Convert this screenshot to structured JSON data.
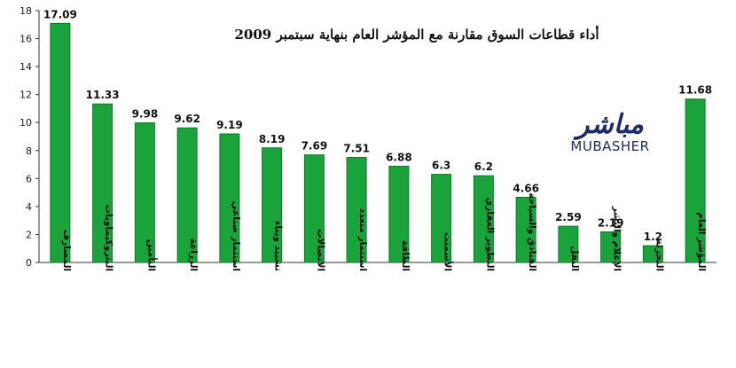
{
  "chart_data": {
    "type": "bar",
    "title": "أداء قطاعات السوق مقارنة مع المؤشر العام بنهاية سبتمبر 2009",
    "categories": [
      "المصارف",
      "البتروكيماويات",
      "التأمين",
      "الزراعة",
      "استثمار صناعي",
      "تشييد وبناء",
      "الاتصالات",
      "استثمار متعدد",
      "الطاقة",
      "الأسمنت",
      "التطوير العقاري",
      "الفنادق والسياحة",
      "النقل",
      "الإعلام والنشر",
      "التجزئة",
      "المؤشر العام"
    ],
    "values": [
      17.09,
      11.33,
      9.98,
      9.62,
      9.19,
      8.19,
      7.69,
      7.51,
      6.88,
      6.3,
      6.2,
      4.66,
      2.59,
      2.19,
      1.2,
      11.68
    ],
    "value_labels": [
      "17.09",
      "11.33",
      "9.98",
      "9.62",
      "9.19",
      "8.19",
      "7.69",
      "7.51",
      "6.88",
      "6.3",
      "6.2",
      "4.66",
      "2.59",
      "2.19",
      "1.2",
      "11.68"
    ],
    "y_ticks": [
      "0",
      "2",
      "4",
      "6",
      "8",
      "10",
      "12",
      "14",
      "16",
      "18"
    ],
    "ylim": [
      0,
      18
    ],
    "grid": false,
    "legend": "none",
    "bar_color": "#1aa33a",
    "bar_edge_color": "#0e7a25"
  },
  "logo": {
    "arabic": "مباشر",
    "english": "MUBASHER",
    "color": "#1f2a6b"
  }
}
